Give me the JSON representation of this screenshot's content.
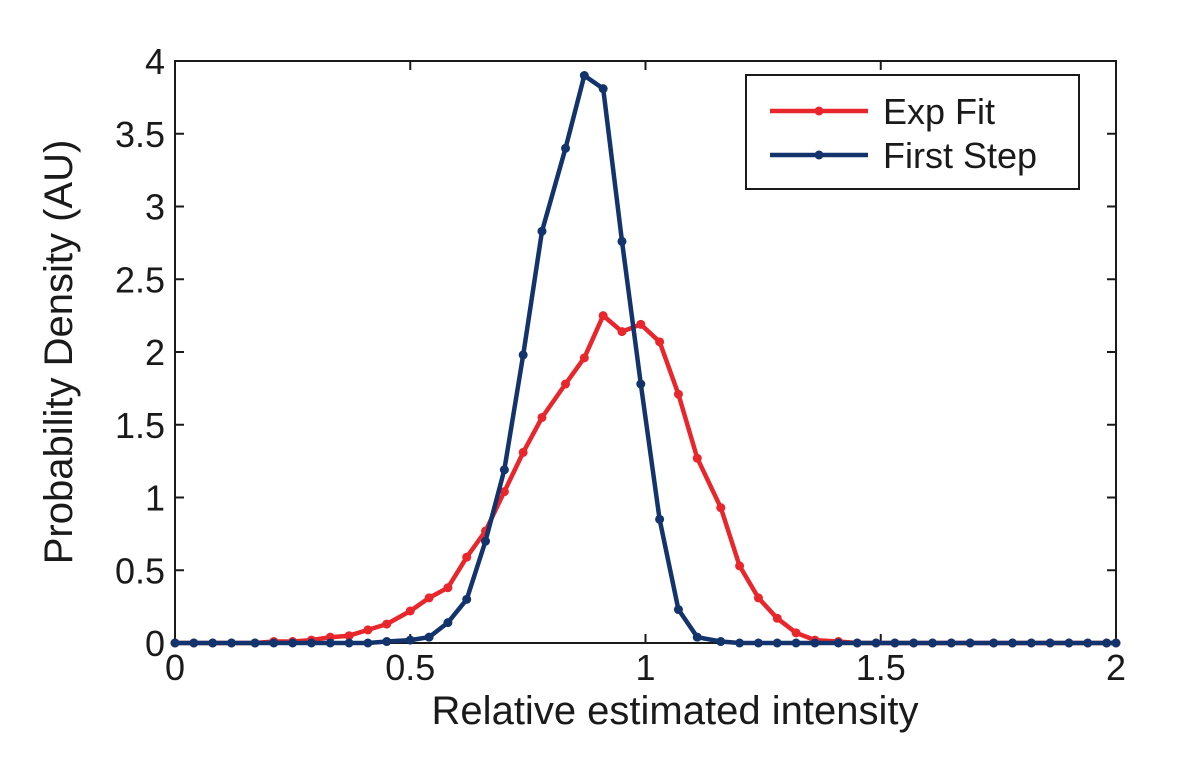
{
  "chart_data": {
    "type": "line",
    "title": "",
    "xlabel": "Relative estimated intensity",
    "ylabel": "Probability Density (AU)",
    "xlim": [
      0,
      2
    ],
    "ylim": [
      0,
      4
    ],
    "xticks": [
      0,
      0.5,
      1,
      1.5,
      2
    ],
    "xtick_labels": [
      "0",
      "0.5",
      "1",
      "1.5",
      "2"
    ],
    "yticks": [
      0,
      0.5,
      1,
      1.5,
      2,
      2.5,
      3,
      3.5,
      4
    ],
    "ytick_labels": [
      "0",
      "0.5",
      "1",
      "1.5",
      "2",
      "2.5",
      "3",
      "3.5",
      "4"
    ],
    "grid": false,
    "legend_position": "top-right",
    "series": [
      {
        "name": "Exp Fit",
        "color": "#e8262c",
        "marker": "circle",
        "x": [
          0,
          0.04,
          0.08,
          0.12,
          0.17,
          0.21,
          0.25,
          0.29,
          0.33,
          0.37,
          0.41,
          0.45,
          0.5,
          0.54,
          0.58,
          0.62,
          0.66,
          0.7,
          0.74,
          0.78,
          0.83,
          0.87,
          0.91,
          0.95,
          0.99,
          1.03,
          1.07,
          1.11,
          1.16,
          1.2,
          1.24,
          1.28,
          1.32,
          1.36,
          1.41,
          1.45,
          1.49,
          1.53,
          1.57,
          1.61,
          1.65,
          1.69,
          1.74,
          1.78,
          1.82,
          1.86,
          1.9,
          1.94,
          1.98,
          2.0
        ],
        "y": [
          0,
          0,
          0,
          0,
          0,
          0.01,
          0.01,
          0.02,
          0.04,
          0.05,
          0.09,
          0.13,
          0.22,
          0.31,
          0.38,
          0.59,
          0.77,
          1.04,
          1.31,
          1.55,
          1.78,
          1.96,
          2.25,
          2.14,
          2.19,
          2.07,
          1.71,
          1.27,
          0.93,
          0.53,
          0.31,
          0.17,
          0.07,
          0.02,
          0.01,
          0,
          0,
          0,
          0,
          0,
          0,
          0,
          0,
          0,
          0,
          0,
          0,
          0,
          0,
          0
        ]
      },
      {
        "name": "First Step",
        "color": "#12336b",
        "marker": "circle",
        "x": [
          0,
          0.04,
          0.08,
          0.12,
          0.17,
          0.21,
          0.25,
          0.29,
          0.33,
          0.37,
          0.41,
          0.45,
          0.5,
          0.54,
          0.58,
          0.62,
          0.66,
          0.7,
          0.74,
          0.78,
          0.83,
          0.87,
          0.91,
          0.95,
          0.99,
          1.03,
          1.07,
          1.11,
          1.16,
          1.2,
          1.24,
          1.28,
          1.32,
          1.36,
          1.41,
          1.45,
          1.49,
          1.53,
          1.57,
          1.61,
          1.65,
          1.69,
          1.74,
          1.78,
          1.82,
          1.86,
          1.9,
          1.94,
          1.98,
          2.0
        ],
        "y": [
          0,
          0,
          0,
          0,
          0,
          0,
          0,
          0,
          0,
          0,
          0,
          0.01,
          0.02,
          0.04,
          0.14,
          0.3,
          0.7,
          1.19,
          1.98,
          2.83,
          3.4,
          3.9,
          3.81,
          2.76,
          1.78,
          0.85,
          0.23,
          0.04,
          0.01,
          0,
          0,
          0,
          0,
          0,
          0,
          0,
          0,
          0,
          0,
          0,
          0,
          0,
          0,
          0,
          0,
          0,
          0,
          0,
          0,
          0
        ]
      }
    ]
  }
}
